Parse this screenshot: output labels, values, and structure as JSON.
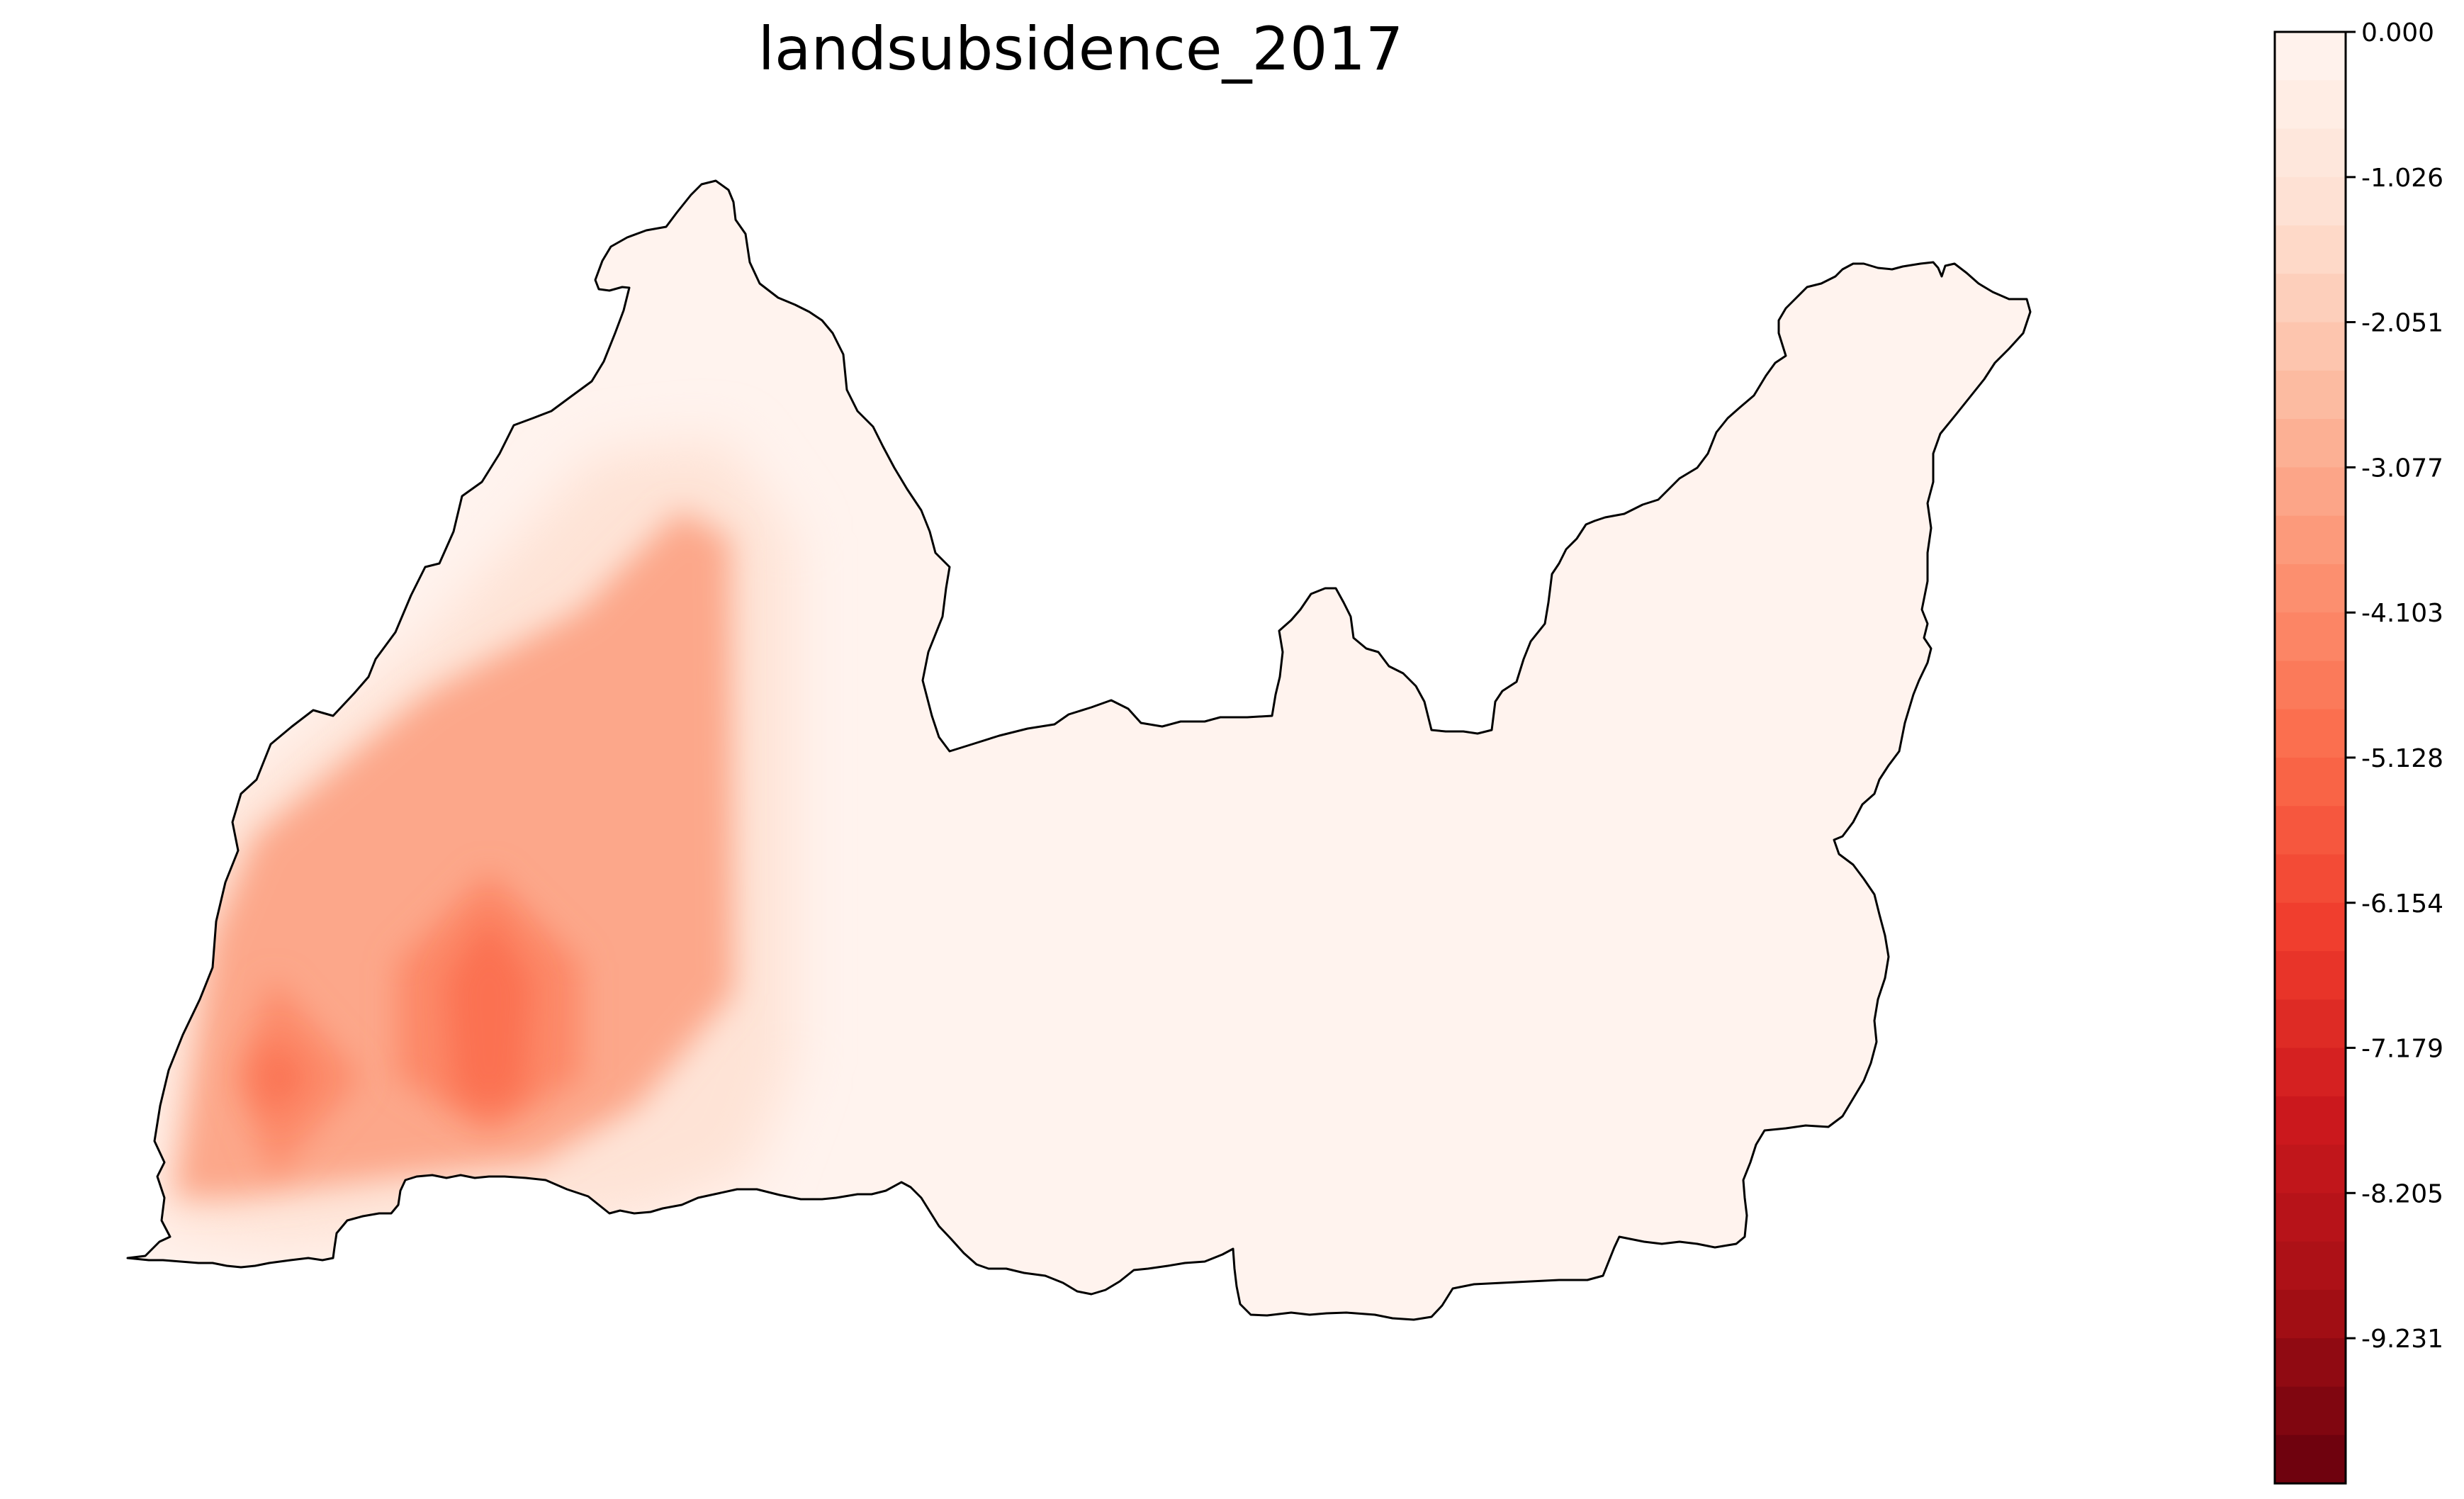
{
  "title": "landsubsidence_2017",
  "colorbar": {
    "colormap": "Reds",
    "min": -10.257,
    "max": 0.0,
    "levels": 30,
    "tick_labels": [
      "0.000",
      "-1.026",
      "-2.051",
      "-3.077",
      "-4.103",
      "-5.128",
      "-6.154",
      "-7.179",
      "-8.205",
      "-9.231"
    ],
    "color_stops": [
      "#fff5f0",
      "#fee0d2",
      "#fcbba1",
      "#fc9272",
      "#fb6a4a",
      "#ef3b2c",
      "#cb181d",
      "#a50f15",
      "#67000d"
    ]
  },
  "map": {
    "type": "filled-contour",
    "outline_color": "#000000",
    "background_fill": "#fff3ee",
    "hotspots": [
      {
        "name": "main-subsidence-zone",
        "value": -3.2
      },
      {
        "name": "peak-east",
        "value": -4.9
      },
      {
        "name": "peak-west",
        "value": -4.8
      }
    ]
  }
}
